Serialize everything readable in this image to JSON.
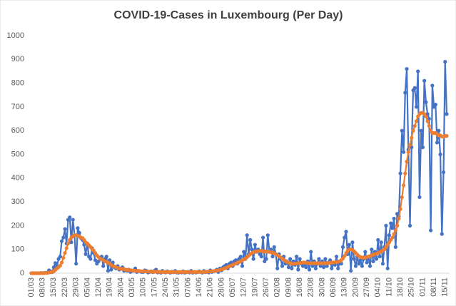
{
  "chart_data": {
    "type": "line",
    "title": "COVID-19-Cases in Luxembourg (Per Day)",
    "categories": [
      "01/03",
      null,
      null,
      null,
      null,
      null,
      null,
      "08/03",
      null,
      null,
      null,
      null,
      null,
      null,
      "15/03",
      null,
      null,
      null,
      null,
      null,
      null,
      "22/03",
      null,
      null,
      null,
      null,
      null,
      null,
      "29/03",
      null,
      null,
      null,
      null,
      null,
      null,
      "05/04",
      null,
      null,
      null,
      null,
      null,
      null,
      "12/04",
      null,
      null,
      null,
      null,
      null,
      null,
      "19/04",
      null,
      null,
      null,
      null,
      null,
      null,
      "26/04",
      null,
      null,
      null,
      null,
      null,
      null,
      "03/05",
      null,
      null,
      null,
      null,
      null,
      null,
      "10/05",
      null,
      null,
      null,
      null,
      null,
      null,
      "17/05",
      null,
      null,
      null,
      null,
      null,
      null,
      "24/05",
      null,
      null,
      null,
      null,
      null,
      null,
      "31/05",
      null,
      null,
      null,
      null,
      null,
      null,
      "07/06",
      null,
      null,
      null,
      null,
      null,
      null,
      "14/06",
      null,
      null,
      null,
      null,
      null,
      null,
      "21/06",
      null,
      null,
      null,
      null,
      null,
      null,
      "28/06",
      null,
      null,
      null,
      null,
      null,
      null,
      "05/07",
      null,
      null,
      null,
      null,
      null,
      null,
      "12/07",
      null,
      null,
      null,
      null,
      null,
      null,
      "19/07",
      null,
      null,
      null,
      null,
      null,
      null,
      "26/07",
      null,
      null,
      null,
      null,
      null,
      null,
      "02/08",
      null,
      null,
      null,
      null,
      null,
      null,
      "09/08",
      null,
      null,
      null,
      null,
      null,
      null,
      "16/08",
      null,
      null,
      null,
      null,
      null,
      null,
      "23/08",
      null,
      null,
      null,
      null,
      null,
      null,
      "30/08",
      null,
      null,
      null,
      null,
      null,
      null,
      "06/09",
      null,
      null,
      null,
      null,
      null,
      null,
      "13/09",
      null,
      null,
      null,
      null,
      null,
      null,
      "20/09",
      null,
      null,
      null,
      null,
      null,
      null,
      "27/09",
      null,
      null,
      null,
      null,
      null,
      null,
      "04/10",
      null,
      null,
      null,
      null,
      null,
      null,
      "11/10",
      null,
      null,
      null,
      null,
      null,
      null,
      "18/10",
      null,
      null,
      null,
      null,
      null,
      null,
      "25/10",
      null,
      null,
      null,
      null,
      null,
      null,
      "01/11",
      null,
      null,
      null,
      null,
      null,
      null,
      "08/11",
      null,
      null,
      null,
      null,
      null,
      null,
      "15/11",
      null
    ],
    "series": [
      {
        "color": "#4472c4",
        "values": [
          0,
          0,
          0,
          0,
          0,
          0,
          1,
          0,
          1,
          2,
          2,
          12,
          8,
          4,
          25,
          43,
          28,
          60,
          70,
          135,
          150,
          186,
          125,
          225,
          235,
          130,
          225,
          160,
          40,
          190,
          170,
          148,
          140,
          120,
          80,
          125,
          70,
          60,
          105,
          85,
          55,
          40,
          50,
          65,
          70,
          30,
          60,
          70,
          10,
          55,
          15,
          45,
          25,
          20,
          30,
          15,
          20,
          25,
          10,
          15,
          10,
          15,
          5,
          10,
          10,
          20,
          5,
          10,
          8,
          5,
          5,
          12,
          10,
          3,
          5,
          8,
          4,
          10,
          15,
          3,
          5,
          2,
          10,
          5,
          3,
          8,
          5,
          2,
          6,
          4,
          10,
          3,
          2,
          5,
          3,
          8,
          2,
          4,
          6,
          3,
          10,
          2,
          5,
          3,
          4,
          8,
          5,
          2,
          10,
          4,
          6,
          3,
          12,
          5,
          8,
          10,
          15,
          5,
          20,
          12,
          25,
          30,
          35,
          20,
          40,
          45,
          30,
          50,
          55,
          40,
          60,
          70,
          30,
          90,
          60,
          160,
          80,
          140,
          100,
          60,
          120,
          90,
          100,
          80,
          70,
          150,
          50,
          60,
          160,
          90,
          100,
          70,
          110,
          80,
          20,
          80,
          60,
          30,
          70,
          40,
          50,
          25,
          60,
          20,
          50,
          35,
          70,
          15,
          60,
          40,
          30,
          40,
          25,
          50,
          15,
          90,
          30,
          50,
          20,
          40,
          60,
          30,
          50,
          25,
          60,
          30,
          45,
          55,
          20,
          40,
          35,
          70,
          20,
          50,
          40,
          110,
          150,
          175,
          80,
          120,
          10,
          130,
          60,
          30,
          70,
          40,
          55,
          30,
          60,
          90,
          45,
          70,
          30,
          100,
          50,
          90,
          60,
          140,
          70,
          130,
          40,
          110,
          200,
          20,
          160,
          210,
          190,
          230,
          110,
          250,
          240,
          420,
          600,
          510,
          760,
          860,
          520,
          200,
          530,
          770,
          780,
          700,
          850,
          320,
          600,
          530,
          810,
          720,
          670,
          650,
          180,
          790,
          700,
          710,
          550,
          600,
          500,
          165,
          425,
          890,
          670
        ]
      },
      {
        "color": "#ed7d31",
        "values": [
          0,
          0,
          0,
          0,
          0,
          0,
          0,
          0,
          1,
          1,
          1,
          3,
          4,
          5,
          8,
          14,
          20,
          25,
          32,
          45,
          65,
          85,
          105,
          125,
          140,
          150,
          155,
          160,
          160,
          158,
          155,
          150,
          148,
          140,
          130,
          125,
          118,
          110,
          100,
          95,
          85,
          75,
          68,
          62,
          58,
          55,
          50,
          48,
          45,
          40,
          35,
          30,
          28,
          25,
          22,
          20,
          18,
          18,
          17,
          15,
          14,
          13,
          12,
          12,
          11,
          10,
          10,
          9,
          9,
          8,
          8,
          8,
          7,
          7,
          7,
          6,
          6,
          6,
          6,
          6,
          6,
          5,
          5,
          5,
          5,
          5,
          5,
          5,
          5,
          5,
          5,
          5,
          5,
          5,
          5,
          5,
          5,
          5,
          5,
          5,
          5,
          5,
          5,
          5,
          5,
          5,
          5,
          5,
          6,
          6,
          6,
          7,
          7,
          8,
          9,
          10,
          11,
          12,
          14,
          16,
          18,
          20,
          23,
          26,
          29,
          32,
          35,
          38,
          41,
          44,
          47,
          50,
          54,
          58,
          62,
          68,
          74,
          80,
          85,
          88,
          90,
          92,
          93,
          94,
          94,
          93,
          92,
          91,
          90,
          90,
          88,
          86,
          84,
          80,
          76,
          72,
          67,
          62,
          57,
          52,
          48,
          45,
          42,
          40,
          40,
          40,
          41,
          42,
          43,
          44,
          45,
          45,
          44,
          43,
          42,
          42,
          42,
          42,
          42,
          42,
          42,
          42,
          42,
          42,
          42,
          42,
          43,
          44,
          45,
          45,
          46,
          47,
          48,
          50,
          55,
          62,
          72,
          85,
          95,
          100,
          100,
          98,
          92,
          85,
          78,
          72,
          68,
          66,
          65,
          66,
          68,
          70,
          72,
          75,
          78,
          80,
          82,
          85,
          88,
          92,
          96,
          100,
          110,
          120,
          130,
          140,
          150,
          165,
          180,
          200,
          230,
          270,
          320,
          370,
          420,
          470,
          510,
          540,
          570,
          600,
          620,
          640,
          660,
          670,
          675,
          675,
          670,
          660,
          640,
          620,
          600,
          590,
          590,
          590,
          585,
          580,
          580,
          575,
          575,
          578,
          578
        ]
      }
    ],
    "ylim": [
      0,
      1000
    ],
    "yticks": [
      0,
      100,
      200,
      300,
      400,
      500,
      600,
      700,
      800,
      900,
      1000
    ],
    "grid": false
  }
}
